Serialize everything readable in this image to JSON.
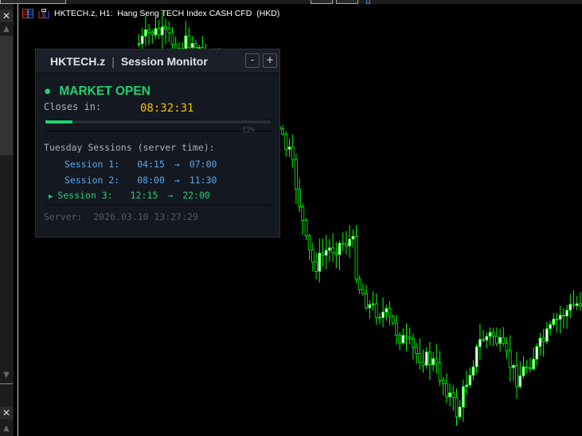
{
  "chart_window": {
    "title": "HKTECH.z, H1:  Hang Seng TECH Index CASH CFD  (HKD)",
    "candle_color_up": "#ffffff",
    "candle_color_down": "#00ff00",
    "background": "#000000"
  },
  "sidebar": {
    "close_label": "✕",
    "scroll_up": "▲",
    "scroll_down": "▼"
  },
  "panel": {
    "symbol": "HKTECH.z",
    "separator": "|",
    "title": "Session Monitor",
    "minimize_label": "-",
    "maximize_label": "+",
    "status_dot": "●",
    "status": "MARKET OPEN",
    "closes_in_label": "Closes in:",
    "countdown": "08:32:31",
    "progress_percent": 12,
    "progress_label": "12%",
    "sessions_header": "Tuesday Sessions (server time):",
    "sessions": [
      {
        "marker": "",
        "name": "Session 1:",
        "start": "04:15",
        "arrow": "→",
        "end": "07:00",
        "active": false
      },
      {
        "marker": "",
        "name": "Session 2:",
        "start": "08:00",
        "arrow": "→",
        "end": "11:30",
        "active": false
      },
      {
        "marker": "▶",
        "name": "Session 3:",
        "start": "12:15",
        "arrow": "→",
        "end": "22:00",
        "active": true
      }
    ],
    "server_label": "Server:",
    "server_time": "2026.03.10 13:27:29",
    "colors": {
      "open": "#20d070",
      "countdown": "#f0c000",
      "session": "#5aa8f0"
    }
  }
}
